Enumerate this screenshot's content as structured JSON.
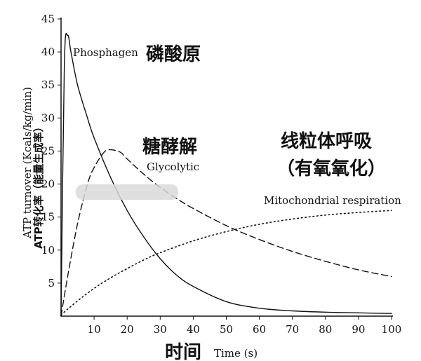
{
  "chart_data": {
    "type": "line",
    "xlabel_en": "Time (s)",
    "xlabel_zh": "时间",
    "ylabel_en": "ATP turnover (Kcals/kg/min)",
    "ylabel_zh": "ATP转化率（能量生成率）",
    "xlim": [
      0,
      100
    ],
    "ylim": [
      0,
      45
    ],
    "x_ticks": [
      10,
      20,
      30,
      40,
      50,
      60,
      70,
      80,
      90,
      100
    ],
    "y_ticks": [
      5,
      10,
      15,
      20,
      25,
      30,
      35,
      40,
      45
    ],
    "grid": false,
    "series": [
      {
        "name": "Phosphagen",
        "name_zh": "磷酸原",
        "line_style": "solid",
        "x": [
          0,
          1,
          2,
          3,
          5,
          8,
          10,
          15,
          20,
          25,
          30,
          35,
          40,
          50,
          60,
          70,
          80,
          90,
          100
        ],
        "y": [
          0,
          38,
          42.5,
          40,
          35,
          30,
          27,
          21,
          16,
          12,
          8.7,
          6.2,
          4.5,
          2.2,
          1.2,
          0.8,
          0.6,
          0.5,
          0.4
        ]
      },
      {
        "name": "Glycolytic",
        "name_zh": "糖酵解",
        "line_style": "dashed",
        "x": [
          0,
          2,
          5,
          8,
          10,
          13,
          15,
          18,
          20,
          25,
          30,
          35,
          40,
          50,
          60,
          70,
          80,
          90,
          100
        ],
        "y": [
          0,
          6,
          14,
          20,
          22.5,
          24.8,
          25.2,
          24.8,
          23.8,
          21.5,
          19.5,
          17.8,
          16.3,
          13.7,
          11.6,
          9.8,
          8.3,
          7,
          6
        ]
      },
      {
        "name": "Mitochondrial respiration",
        "name_zh": "线粒体呼吸（有氧氧化）",
        "line_style": "dotted",
        "x": [
          0,
          5,
          10,
          15,
          20,
          25,
          30,
          40,
          50,
          60,
          70,
          80,
          90,
          100
        ],
        "y": [
          0.2,
          2.3,
          4.2,
          5.8,
          7.2,
          8.5,
          9.6,
          11.4,
          12.8,
          13.9,
          14.7,
          15.3,
          15.7,
          16
        ]
      }
    ]
  }
}
